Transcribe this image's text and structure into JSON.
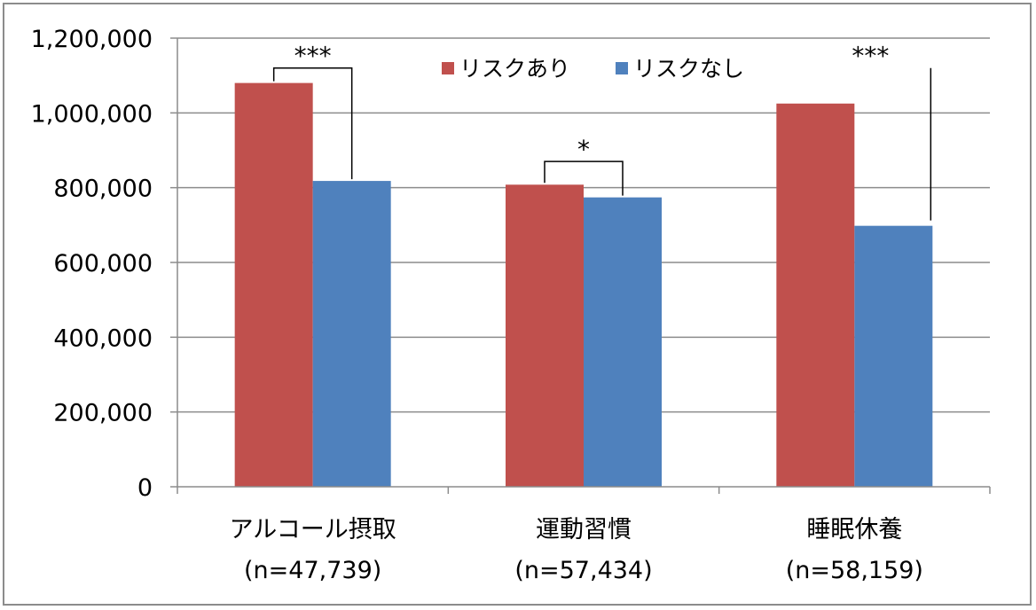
{
  "chart_data": {
    "type": "bar",
    "categories": [
      "アルコール摂取",
      "運動習慣",
      "睡眠休養"
    ],
    "category_notes": [
      "(n=47,739)",
      "(n=57,434)",
      "(n=58,159)"
    ],
    "series": [
      {
        "name": "リスクあり",
        "color": "#C0504D",
        "values": [
          1080000,
          808000,
          1025000
        ]
      },
      {
        "name": "リスクなし",
        "color": "#4F81BD",
        "values": [
          818000,
          774000,
          698000
        ]
      }
    ],
    "ylim": [
      0,
      1200000
    ],
    "yticks": [
      0,
      200000,
      400000,
      600000,
      800000,
      1000000,
      1200000
    ],
    "ytick_labels": [
      "0",
      "200,000",
      "400,000",
      "600,000",
      "800,000",
      "1,000,000",
      "1,200,000"
    ],
    "grid": true,
    "legend_position": "top-center",
    "significance": [
      {
        "category_index": 0,
        "label": "***",
        "bracket_top": 1120000
      },
      {
        "category_index": 1,
        "label": "*",
        "bracket_top": 870000
      },
      {
        "category_index": 2,
        "label": "***",
        "bracket_top": 1120000
      }
    ]
  }
}
